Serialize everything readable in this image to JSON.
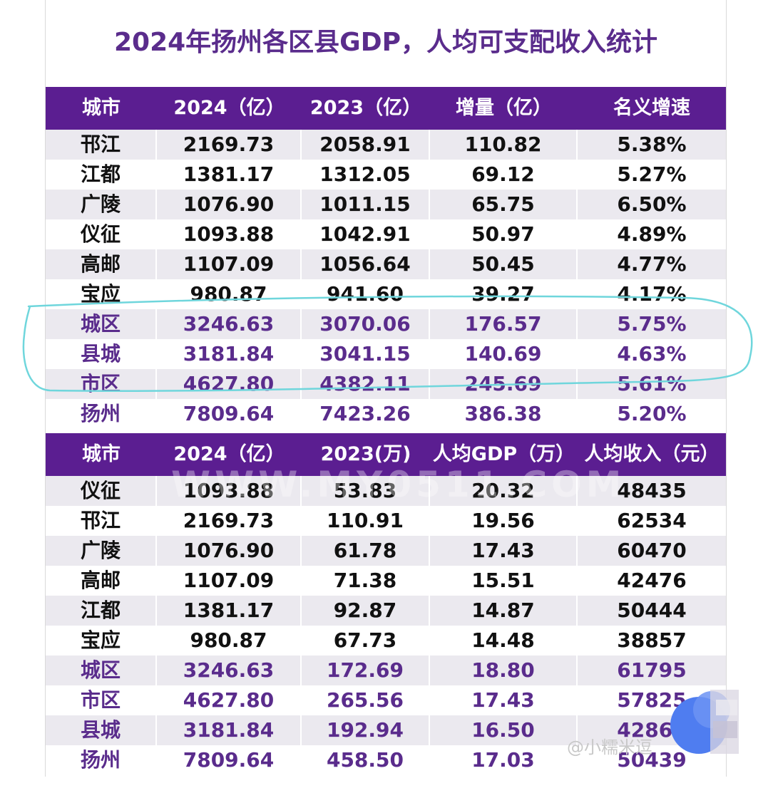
{
  "title": "2024年扬州各区县GDP，人均可支配收入统计",
  "table1": {
    "headers": [
      "城市",
      "2024（亿）",
      "2023（亿）",
      "增量（亿）",
      "名义增速"
    ],
    "rows": [
      {
        "cells": [
          "邗江",
          "2169.73",
          "2058.91",
          "110.82",
          "5.38%"
        ],
        "highlight": false
      },
      {
        "cells": [
          "江都",
          "1381.17",
          "1312.05",
          "69.12",
          "5.27%"
        ],
        "highlight": false
      },
      {
        "cells": [
          "广陵",
          "1076.90",
          "1011.15",
          "65.75",
          "6.50%"
        ],
        "highlight": false
      },
      {
        "cells": [
          "仪征",
          "1093.88",
          "1042.91",
          "50.97",
          "4.89%"
        ],
        "highlight": false
      },
      {
        "cells": [
          "高邮",
          "1107.09",
          "1056.64",
          "50.45",
          "4.77%"
        ],
        "highlight": false
      },
      {
        "cells": [
          "宝应",
          "980.87",
          "941.60",
          "39.27",
          "4.17%"
        ],
        "highlight": false
      },
      {
        "cells": [
          "城区",
          "3246.63",
          "3070.06",
          "176.57",
          "5.75%"
        ],
        "highlight": true
      },
      {
        "cells": [
          "县城",
          "3181.84",
          "3041.15",
          "140.69",
          "4.63%"
        ],
        "highlight": true
      },
      {
        "cells": [
          "市区",
          "4627.80",
          "4382.11",
          "245.69",
          "5.61%"
        ],
        "highlight": true
      },
      {
        "cells": [
          "扬州",
          "7809.64",
          "7423.26",
          "386.38",
          "5.20%"
        ],
        "highlight": true
      }
    ]
  },
  "table2": {
    "headers": [
      "城市",
      "2024（亿）",
      "2023(万)",
      "人均GDP（万）",
      "人均收入（元）"
    ],
    "rows": [
      {
        "cells": [
          "仪征",
          "1093.88",
          "53.83",
          "20.32",
          "48435"
        ],
        "highlight": false
      },
      {
        "cells": [
          "邗江",
          "2169.73",
          "110.91",
          "19.56",
          "62534"
        ],
        "highlight": false
      },
      {
        "cells": [
          "广陵",
          "1076.90",
          "61.78",
          "17.43",
          "60470"
        ],
        "highlight": false
      },
      {
        "cells": [
          "高邮",
          "1107.09",
          "71.38",
          "15.51",
          "42476"
        ],
        "highlight": false
      },
      {
        "cells": [
          "江都",
          "1381.17",
          "92.87",
          "14.87",
          "50444"
        ],
        "highlight": false
      },
      {
        "cells": [
          "宝应",
          "980.87",
          "67.73",
          "14.48",
          "38857"
        ],
        "highlight": false
      },
      {
        "cells": [
          "城区",
          "3246.63",
          "172.69",
          "18.80",
          "61795"
        ],
        "highlight": true
      },
      {
        "cells": [
          "市区",
          "4627.80",
          "265.56",
          "17.43",
          "57825"
        ],
        "highlight": true
      },
      {
        "cells": [
          "县城",
          "3181.84",
          "192.94",
          "16.50",
          "42868"
        ],
        "highlight": true
      },
      {
        "cells": [
          "扬州",
          "7809.64",
          "458.50",
          "17.03",
          "50439"
        ],
        "highlight": true
      }
    ]
  },
  "watermark": "WWW.MY0511.COM",
  "credit": "@小糯米逗",
  "colors": {
    "header_bg": "#5b1e91",
    "title": "#5a2c8c",
    "highlight_text": "#5a2c8c",
    "row_alt": "#ebe9ef",
    "annotation_stroke": "#6fd6dc"
  }
}
